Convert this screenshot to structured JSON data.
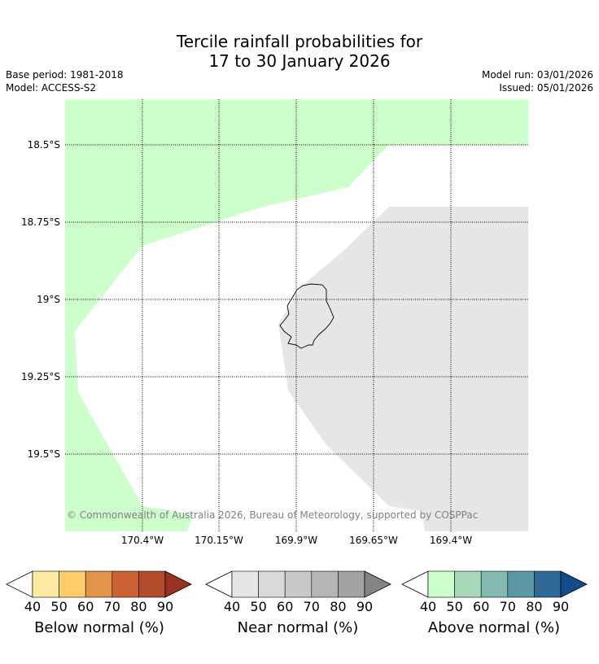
{
  "title_line1": "Tercile rainfall probabilities for",
  "title_line2": "17 to 30 January 2026",
  "base_period": "Base period: 1981-2018",
  "model": "Model: ACCESS-S2",
  "model_run": "Model run: 03/01/2026",
  "issued": "Issued: 05/01/2026",
  "latitudes": [
    "18.5°S",
    "18.75°S",
    "19°S",
    "19.25°S",
    "19.5°S"
  ],
  "longitudes": [
    "170.4°W",
    "170.15°W",
    "169.9°W",
    "169.65°W",
    "169.4°W"
  ],
  "credit": "© Commonwealth of Australia 2026, Bureau of Meteorology, supported by COSPPac",
  "colorbars": [
    {
      "label": "Below normal (%)",
      "ticks": [
        "40",
        "50",
        "60",
        "70",
        "80",
        "90"
      ],
      "colors": [
        "#fdeaa0",
        "#fdcd6a",
        "#e2954a",
        "#cc6234",
        "#b24c2a",
        "#973320"
      ]
    },
    {
      "label": "Near normal (%)",
      "ticks": [
        "40",
        "50",
        "60",
        "70",
        "80",
        "90"
      ],
      "colors": [
        "#e6e6e6",
        "#d9d9d9",
        "#c8c8c8",
        "#b5b5b5",
        "#a2a2a2",
        "#848484"
      ]
    },
    {
      "label": "Above normal (%)",
      "ticks": [
        "40",
        "50",
        "60",
        "70",
        "80",
        "90"
      ],
      "colors": [
        "#ccffcc",
        "#a8d8ba",
        "#82b9b1",
        "#5c95a3",
        "#306898",
        "#124d8a"
      ]
    }
  ],
  "region_colors": {
    "above_normal_40_50": "#ccffcc",
    "near_normal_40_50": "#e6e6e6"
  }
}
